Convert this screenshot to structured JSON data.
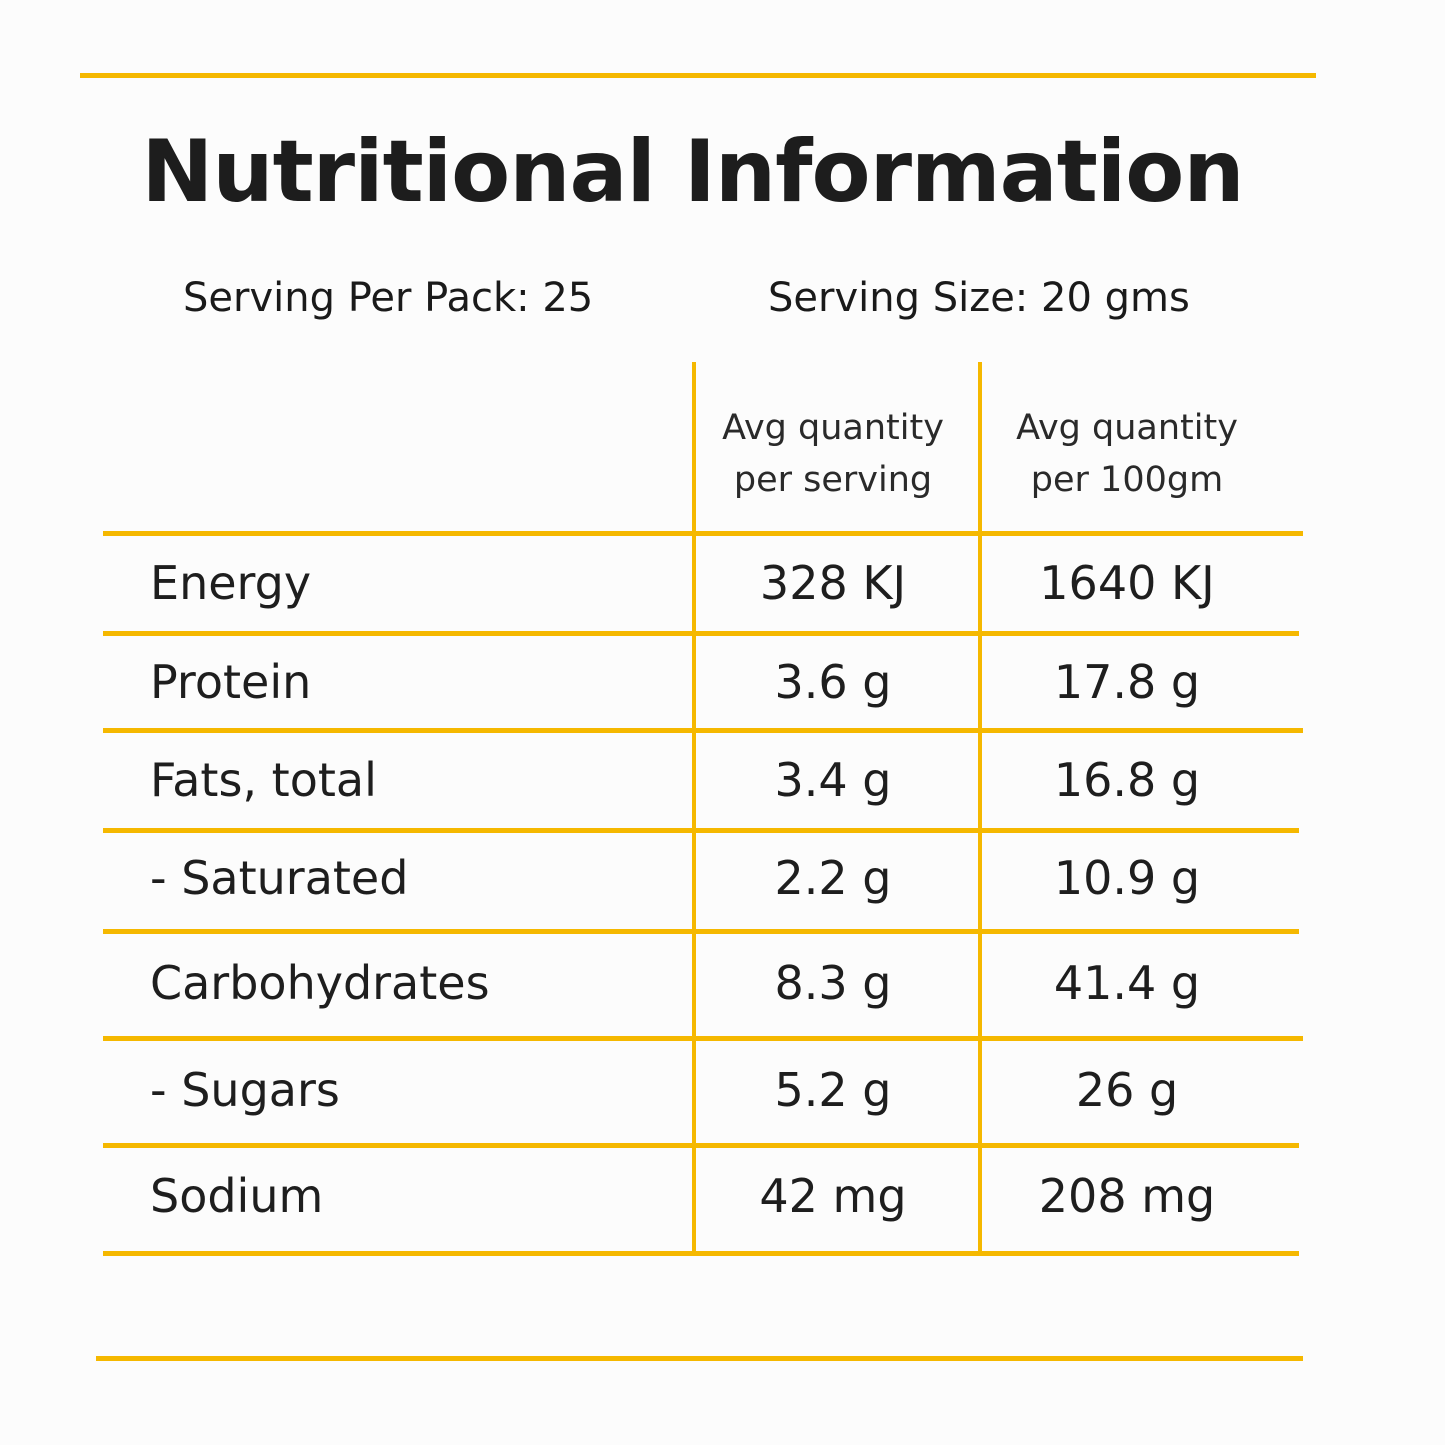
{
  "title": "Nutritional Information",
  "serving_per_pack": "Serving Per Pack: 25",
  "serving_size": "Serving Size: 20 gms",
  "columns": [
    {
      "line1": "Avg quantity",
      "line2": "per serving"
    },
    {
      "line1": "Avg quantity",
      "line2": "per 100gm"
    }
  ],
  "rows": [
    {
      "nutrient": "Energy",
      "per_serving": "328 KJ",
      "per_100gm": "1640 KJ"
    },
    {
      "nutrient": "Protein",
      "per_serving": "3.6 g",
      "per_100gm": "17.8 g"
    },
    {
      "nutrient": "Fats, total",
      "per_serving": "3.4 g",
      "per_100gm": "16.8 g"
    },
    {
      "nutrient": "- Saturated",
      "per_serving": "2.2 g",
      "per_100gm": "10.9 g"
    },
    {
      "nutrient": "Carbohydrates",
      "per_serving": "8.3 g",
      "per_100gm": "41.4 g"
    },
    {
      "nutrient": "- Sugars",
      "per_serving": "5.2 g",
      "per_100gm": "26 g"
    },
    {
      "nutrient": "Sodium",
      "per_serving": "42 mg",
      "per_100gm": "208 mg"
    }
  ],
  "colors": {
    "accent": "#f5b800",
    "text": "#1e1e1e",
    "background": "#fcfcfc"
  }
}
